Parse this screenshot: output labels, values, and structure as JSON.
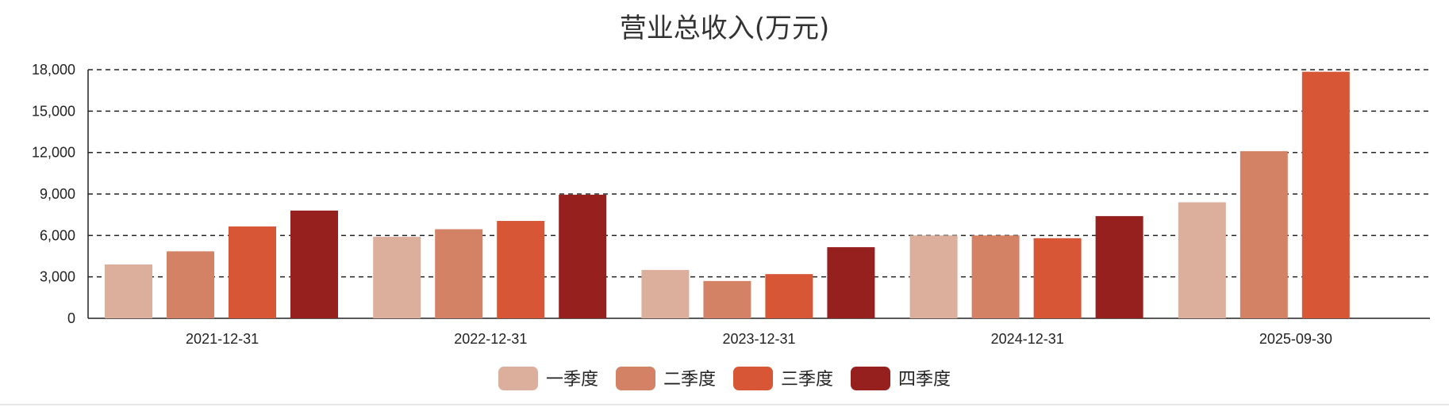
{
  "chart_data": {
    "type": "bar",
    "title": "营业总收入(万元)",
    "categories": [
      "2021-12-31",
      "2022-12-31",
      "2023-12-31",
      "2024-12-31",
      "2025-09-30"
    ],
    "series": [
      {
        "name": "一季度",
        "color": "#dcaf9c",
        "values": [
          3900,
          5900,
          3500,
          6000,
          8400
        ]
      },
      {
        "name": "二季度",
        "color": "#d48265",
        "values": [
          4850,
          6450,
          2700,
          6000,
          12100
        ]
      },
      {
        "name": "三季度",
        "color": "#d65636",
        "values": [
          6650,
          7050,
          3200,
          5800,
          17850
        ]
      },
      {
        "name": "四季度",
        "color": "#96201e",
        "values": [
          7800,
          8950,
          5150,
          7400,
          null
        ]
      }
    ],
    "ylim": [
      0,
      18000
    ],
    "yticks": [
      0,
      3000,
      6000,
      9000,
      12000,
      15000,
      18000
    ],
    "ytick_labels": [
      "0",
      "3,000",
      "6,000",
      "9,000",
      "12,000",
      "15,000",
      "18,000"
    ],
    "xlabel": "",
    "ylabel": "",
    "grid": true,
    "legend": "bottom-center"
  }
}
